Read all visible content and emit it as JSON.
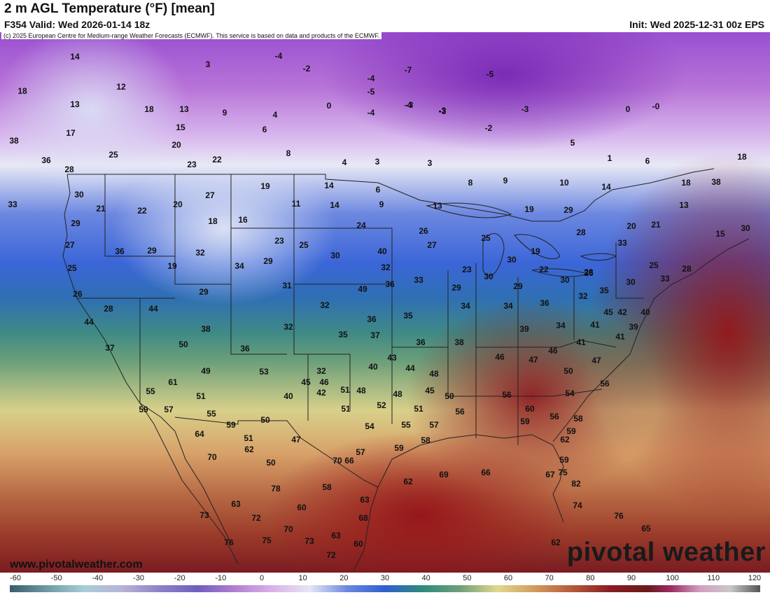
{
  "header": {
    "title": "2 m AGL Temperature (°F) [mean]",
    "valid": "F354 Valid: Wed 2026-01-14 18z",
    "init": "Init: Wed 2025-12-31 00z EPS",
    "copyright": "(c) 2025 European Centre for Medium-range Weather Forecasts (ECMWF). This service is based on data and products of the ECMWF."
  },
  "footer": {
    "site": "www.pivotalweather.com",
    "logo": "pivotal weather"
  },
  "scale": {
    "ticks": [
      "-60",
      "-50",
      "-40",
      "-30",
      "-20",
      "-10",
      "0",
      "10",
      "20",
      "30",
      "40",
      "50",
      "60",
      "70",
      "80",
      "90",
      "100",
      "110",
      "120"
    ]
  },
  "map_values": {
    "labels": [
      "14",
      "3",
      "-4",
      "-2",
      "-5",
      "-4",
      "-7",
      "-5",
      "-3",
      "-3",
      "18",
      "12",
      "13",
      "18",
      "13",
      "9",
      "4",
      "0",
      "-4",
      "-4",
      "-3",
      "-3",
      "0",
      "-0",
      "15",
      "6",
      "-2",
      "5",
      "17",
      "20",
      "8",
      "38",
      "25",
      "23",
      "22",
      "4",
      "3",
      "3",
      "1",
      "6",
      "18",
      "36",
      "28",
      "27",
      "19",
      "14",
      "6",
      "9",
      "8",
      "9",
      "10",
      "14",
      "18",
      "38",
      "33",
      "30",
      "21",
      "22",
      "20",
      "18",
      "11",
      "14",
      "13",
      "19",
      "29",
      "13",
      "16",
      "24",
      "26",
      "25",
      "20",
      "21",
      "30",
      "29",
      "36",
      "29",
      "32",
      "23",
      "25",
      "30",
      "27",
      "15",
      "27",
      "28",
      "25",
      "19",
      "34",
      "29",
      "33",
      "40",
      "32",
      "19",
      "23",
      "30",
      "22",
      "26",
      "25",
      "28",
      "26",
      "28",
      "29",
      "31",
      "36",
      "49",
      "33",
      "29",
      "30",
      "29",
      "30",
      "28",
      "30",
      "33",
      "32",
      "35",
      "32",
      "34",
      "34",
      "36",
      "34",
      "41",
      "42",
      "40",
      "39",
      "44",
      "44",
      "32",
      "35",
      "37",
      "38",
      "36",
      "35",
      "36",
      "39",
      "38",
      "41",
      "46",
      "50",
      "41",
      "45",
      "47",
      "49",
      "36",
      "32",
      "40",
      "43",
      "44",
      "46",
      "45",
      "46",
      "47",
      "48",
      "51",
      "50",
      "54",
      "56",
      "56",
      "55",
      "61",
      "53",
      "37",
      "45",
      "40",
      "42",
      "48",
      "48",
      "51",
      "50",
      "52",
      "51",
      "55",
      "56",
      "56",
      "59",
      "60",
      "59",
      "51",
      "50",
      "47",
      "51",
      "54",
      "55",
      "57",
      "58",
      "59",
      "58",
      "62",
      "64",
      "62",
      "50",
      "57",
      "59",
      "57",
      "59",
      "59",
      "70",
      "66",
      "62",
      "69",
      "66",
      "67",
      "82",
      "75",
      "70",
      "63",
      "74",
      "76",
      "73",
      "72",
      "78",
      "58",
      "60",
      "63",
      "68",
      "70",
      "62",
      "76",
      "75",
      "73",
      "63",
      "60",
      "72",
      "65",
      "76"
    ]
  }
}
